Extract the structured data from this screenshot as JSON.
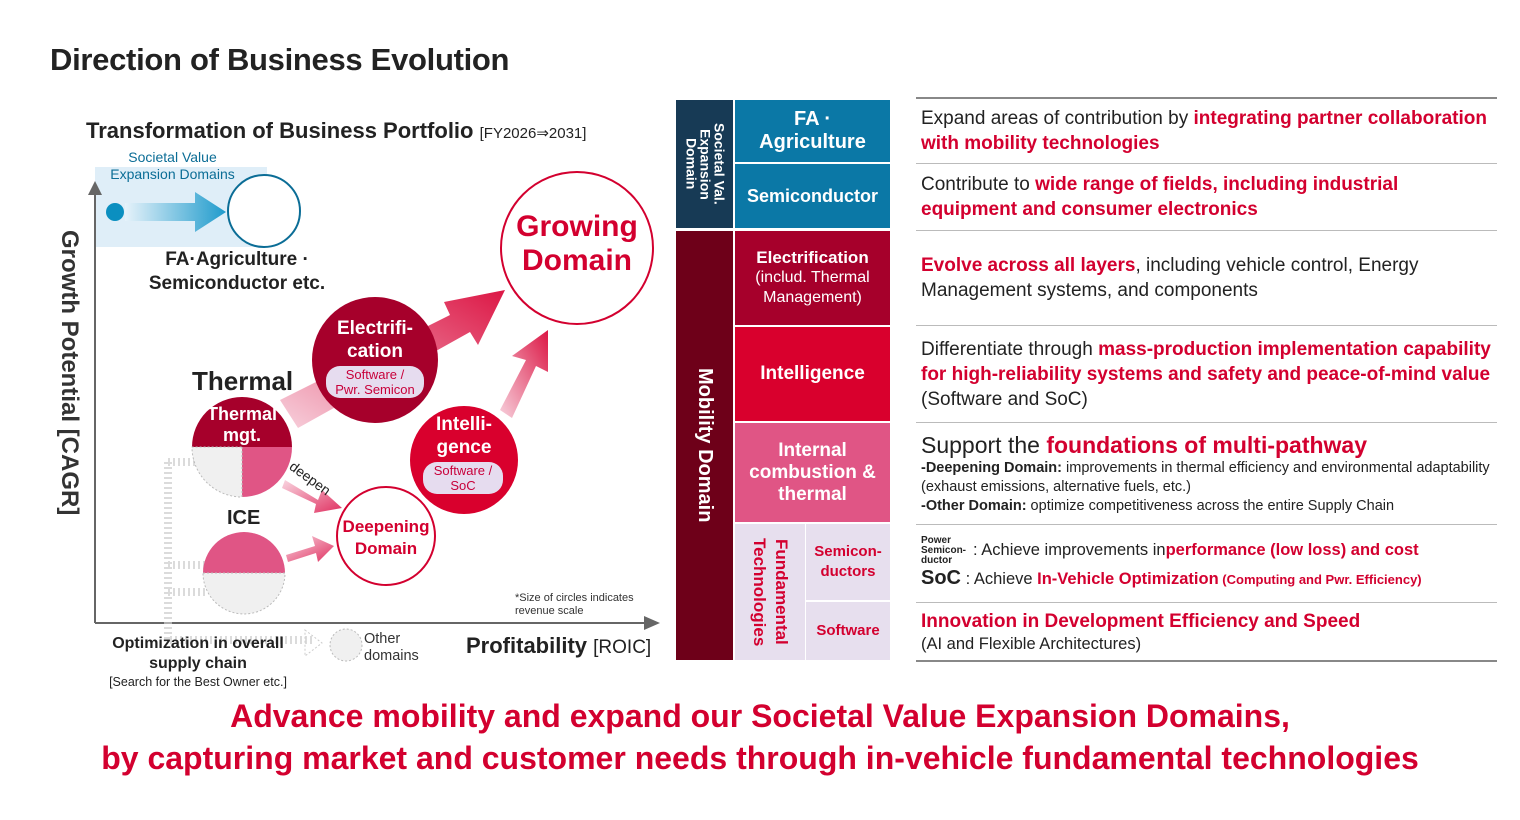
{
  "title": "Direction of Business Evolution",
  "portfolio": {
    "title": "Transformation of Business Portfolio",
    "period": "[FY2026⇒2031]",
    "y_axis": "Growth Potential [CAGR]",
    "x_axis": "Profitability",
    "x_axis_unit": "[ROIC]",
    "societal_label_1": "Societal Value",
    "societal_label_2": "Expansion Domains",
    "fa_line1": "FA·Agriculture ·",
    "fa_line2": "Semiconductor etc.",
    "growing_1": "Growing",
    "growing_2": "Domain",
    "electrification_1": "Electrifi-",
    "electrification_2": "cation",
    "electrification_pill_1": "Software /",
    "electrification_pill_2": "Pwr. Semicon",
    "thermal": "Thermal",
    "thermal_mgt_1": "Thermal",
    "thermal_mgt_2": "mgt.",
    "deepen": "deepen",
    "ice": "ICE",
    "deepening_1": "Deepening",
    "deepening_2": "Domain",
    "intelligence_1": "Intelli-",
    "intelligence_2": "gence",
    "intelligence_pill_1": "Software /",
    "intelligence_pill_2": "SoC",
    "note_1": "*Size of circles indicates",
    "note_2": "revenue scale",
    "optim_1": "Optimization in overall",
    "optim_2": "supply chain",
    "optim_3": "[Search for the Best Owner etc.]",
    "other_1": "Other",
    "other_2": "domains"
  },
  "domains": {
    "societal": "Societal Val. Expansion Domain",
    "mobility": "Mobility Domain",
    "fa": "FA ·\nAgriculture",
    "fa_1": "FA ·",
    "fa_2": "Agriculture",
    "semiconductor": "Semiconductor",
    "electrification_1": "Electrification",
    "electrification_2": "(includ. Thermal",
    "electrification_3": "Management)",
    "intelligence": "Intelligence",
    "ice_1": "Internal",
    "ice_2": "combustion &",
    "ice_3": "thermal",
    "fundamental_1": "Fundamental",
    "fundamental_2": "Technologies",
    "semis_1": "Semicon-",
    "semis_2": "ductors",
    "software": "Software"
  },
  "descriptions": {
    "r1": [
      "Expand areas of contribution by ",
      "integrating partner collaboration with mobility technologies"
    ],
    "r2": [
      "Contribute to ",
      "wide range of fields, including industrial equipment and consumer electronics"
    ],
    "r3": [
      "Evolve across all layers",
      ", including vehicle control, Energy Management systems, and components"
    ],
    "r4": [
      "Differentiate through ",
      "mass-production implementation capability for high-reliability systems and safety and peace-of-mind value",
      " (Software and SoC)"
    ],
    "r5": [
      "Support the ",
      "foundations of multi-pathway",
      "-Deepening Domain:",
      " improvements in thermal efficiency and environmental adaptability (exhaust emissions, alternative fuels, etc.)",
      "-Other Domain:",
      " optimize competitiveness across the entire Supply Chain"
    ],
    "r6": [
      "Power Semicon- ductor",
      ": Achieve improvements in ",
      "performance (low loss) and cost",
      "SoC",
      " : Achieve ",
      "In-Vehicle Optimization",
      " (Computing and Pwr. Efficiency)"
    ],
    "r7": [
      "Innovation in Development Efficiency and Speed",
      "(AI and Flexible Architectures)"
    ]
  },
  "bottom": {
    "line1": "Advance mobility and expand our Societal Value Expansion Domains,",
    "line2": "by capturing market and customer needs through in-vehicle fundamental technologies"
  },
  "colors": {
    "red": "#d3002f",
    "teal": "#0b78a6",
    "navy": "#173a55",
    "maroon": "#6e0019",
    "crimson": "#a6002b",
    "pink": "#e05585",
    "lavender": "#e7dfee"
  }
}
